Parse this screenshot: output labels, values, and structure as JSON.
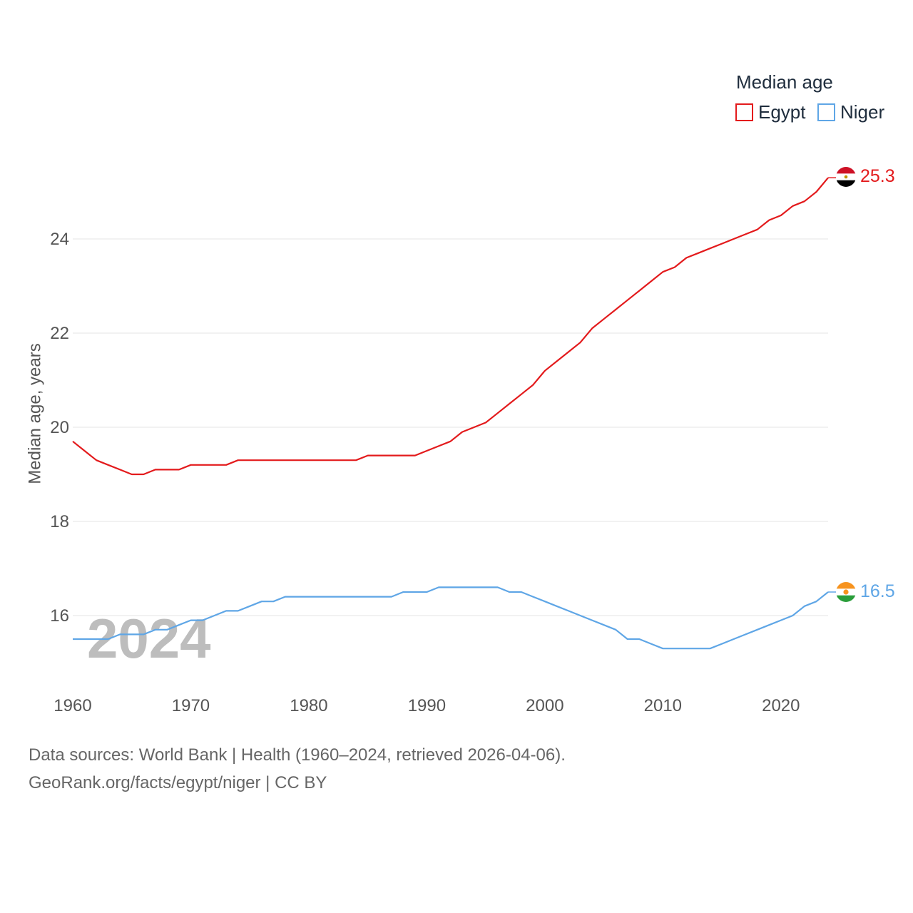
{
  "chart_data": {
    "type": "line",
    "title": "",
    "xlabel": "",
    "ylabel": "Median age, years",
    "xlim": [
      1960,
      2024
    ],
    "ylim": [
      14.5,
      26.5
    ],
    "x_ticks": [
      1960,
      1970,
      1980,
      1990,
      2000,
      2010,
      2020
    ],
    "y_ticks": [
      16,
      18,
      20,
      22,
      24
    ],
    "x_tick_labels": [
      "1960",
      "1970",
      "1980",
      "1990",
      "2000",
      "2010",
      "2020"
    ],
    "y_tick_labels": [
      "16",
      "18",
      "20",
      "22",
      "24"
    ],
    "legend": {
      "title": "Median age",
      "position": "top-right"
    },
    "current_year": "2024",
    "x": [
      1960,
      1961,
      1962,
      1963,
      1964,
      1965,
      1966,
      1967,
      1968,
      1969,
      1970,
      1971,
      1972,
      1973,
      1974,
      1975,
      1976,
      1977,
      1978,
      1979,
      1980,
      1981,
      1982,
      1983,
      1984,
      1985,
      1986,
      1987,
      1988,
      1989,
      1990,
      1991,
      1992,
      1993,
      1994,
      1995,
      1996,
      1997,
      1998,
      1999,
      2000,
      2001,
      2002,
      2003,
      2004,
      2005,
      2006,
      2007,
      2008,
      2009,
      2010,
      2011,
      2012,
      2013,
      2014,
      2015,
      2016,
      2017,
      2018,
      2019,
      2020,
      2021,
      2022,
      2023,
      2024
    ],
    "series": [
      {
        "name": "Egypt",
        "color": "#e31a1c",
        "end_label": "25.3",
        "values": [
          19.7,
          19.5,
          19.3,
          19.2,
          19.1,
          19.0,
          19.0,
          19.1,
          19.1,
          19.1,
          19.2,
          19.2,
          19.2,
          19.2,
          19.3,
          19.3,
          19.3,
          19.3,
          19.3,
          19.3,
          19.3,
          19.3,
          19.3,
          19.3,
          19.3,
          19.4,
          19.4,
          19.4,
          19.4,
          19.4,
          19.5,
          19.6,
          19.7,
          19.9,
          20.0,
          20.1,
          20.3,
          20.5,
          20.7,
          20.9,
          21.2,
          21.4,
          21.6,
          21.8,
          22.1,
          22.3,
          22.5,
          22.7,
          22.9,
          23.1,
          23.3,
          23.4,
          23.6,
          23.7,
          23.8,
          23.9,
          24.0,
          24.1,
          24.2,
          24.4,
          24.5,
          24.7,
          24.8,
          25.0,
          25.3
        ]
      },
      {
        "name": "Niger",
        "color": "#5fa6e6",
        "end_label": "16.5",
        "values": [
          15.5,
          15.5,
          15.5,
          15.5,
          15.6,
          15.6,
          15.6,
          15.7,
          15.7,
          15.8,
          15.9,
          15.9,
          16.0,
          16.1,
          16.1,
          16.2,
          16.3,
          16.3,
          16.4,
          16.4,
          16.4,
          16.4,
          16.4,
          16.4,
          16.4,
          16.4,
          16.4,
          16.4,
          16.5,
          16.5,
          16.5,
          16.6,
          16.6,
          16.6,
          16.6,
          16.6,
          16.6,
          16.5,
          16.5,
          16.4,
          16.3,
          16.2,
          16.1,
          16.0,
          15.9,
          15.8,
          15.7,
          15.5,
          15.5,
          15.4,
          15.3,
          15.3,
          15.3,
          15.3,
          15.3,
          15.4,
          15.5,
          15.6,
          15.7,
          15.8,
          15.9,
          16.0,
          16.2,
          16.3,
          16.5
        ]
      }
    ],
    "source_lines": [
      "Data sources: World Bank | Health (1960–2024, retrieved 2026-04-06).",
      "GeoRank.org/facts/egypt/niger | CC BY"
    ]
  }
}
